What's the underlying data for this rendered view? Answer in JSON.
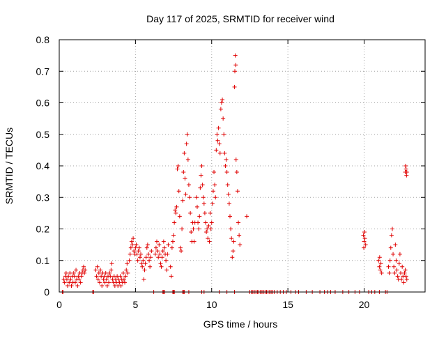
{
  "chart_data": {
    "type": "scatter",
    "title": "Day 117 of 2025, SRMTID for receiver wind",
    "xlabel": "GPS time / hours",
    "ylabel": "SRMTID / TECUs",
    "xlim": [
      0,
      24
    ],
    "ylim": [
      0,
      0.8
    ],
    "grid": true,
    "marker": "+",
    "marker_color": "#e00000",
    "x_ticks": [
      0,
      5,
      10,
      15,
      20
    ],
    "x_tick_labels": [
      "0",
      "5",
      "10",
      "15",
      "20"
    ],
    "y_ticks": [
      0,
      0.1,
      0.2,
      0.3,
      0.4,
      0.5,
      0.6,
      0.7,
      0.8
    ],
    "y_tick_labels": [
      "0",
      "0.1",
      "0.2",
      "0.3",
      "0.4",
      "0.5",
      "0.6",
      "0.7",
      "0.8"
    ],
    "series": [
      {
        "name": "SRMTID",
        "points": [
          [
            0.2,
            0.0
          ],
          [
            0.25,
            0.0
          ],
          [
            0.3,
            0.04
          ],
          [
            0.35,
            0.03
          ],
          [
            0.4,
            0.05
          ],
          [
            0.45,
            0.06
          ],
          [
            0.5,
            0.04
          ],
          [
            0.55,
            0.02
          ],
          [
            0.6,
            0.05
          ],
          [
            0.65,
            0.03
          ],
          [
            0.7,
            0.06
          ],
          [
            0.75,
            0.04
          ],
          [
            0.8,
            0.02
          ],
          [
            0.85,
            0.05
          ],
          [
            0.9,
            0.03
          ],
          [
            0.95,
            0.06
          ],
          [
            1.0,
            0.05
          ],
          [
            1.05,
            0.03
          ],
          [
            1.1,
            0.07
          ],
          [
            1.15,
            0.04
          ],
          [
            1.2,
            0.02
          ],
          [
            1.25,
            0.05
          ],
          [
            1.3,
            0.04
          ],
          [
            1.35,
            0.06
          ],
          [
            1.4,
            0.03
          ],
          [
            1.45,
            0.05
          ],
          [
            1.5,
            0.06
          ],
          [
            1.55,
            0.07
          ],
          [
            1.6,
            0.08
          ],
          [
            1.65,
            0.06
          ],
          [
            1.7,
            0.07
          ],
          [
            2.2,
            0.0
          ],
          [
            2.25,
            0.0
          ],
          [
            2.4,
            0.07
          ],
          [
            2.45,
            0.05
          ],
          [
            2.5,
            0.08
          ],
          [
            2.55,
            0.04
          ],
          [
            2.6,
            0.06
          ],
          [
            2.65,
            0.03
          ],
          [
            2.7,
            0.07
          ],
          [
            2.75,
            0.05
          ],
          [
            2.8,
            0.02
          ],
          [
            2.85,
            0.06
          ],
          [
            2.9,
            0.04
          ],
          [
            2.95,
            0.05
          ],
          [
            3.0,
            0.03
          ],
          [
            3.05,
            0.06
          ],
          [
            3.1,
            0.04
          ],
          [
            3.15,
            0.02
          ],
          [
            3.2,
            0.05
          ],
          [
            3.25,
            0.03
          ],
          [
            3.3,
            0.06
          ],
          [
            3.35,
            0.05
          ],
          [
            3.4,
            0.07
          ],
          [
            3.45,
            0.09
          ],
          [
            3.5,
            0.04
          ],
          [
            3.55,
            0.03
          ],
          [
            3.6,
            0.05
          ],
          [
            3.65,
            0.02
          ],
          [
            3.7,
            0.04
          ],
          [
            3.75,
            0.03
          ],
          [
            3.8,
            0.05
          ],
          [
            3.85,
            0.02
          ],
          [
            3.9,
            0.04
          ],
          [
            3.95,
            0.03
          ],
          [
            4.0,
            0.05
          ],
          [
            4.05,
            0.02
          ],
          [
            4.1,
            0.04
          ],
          [
            4.15,
            0.03
          ],
          [
            4.2,
            0.06
          ],
          [
            4.25,
            0.04
          ],
          [
            4.3,
            0.03
          ],
          [
            4.35,
            0.05
          ],
          [
            4.4,
            0.07
          ],
          [
            4.45,
            0.09
          ],
          [
            4.5,
            0.06
          ],
          [
            4.6,
            0.1
          ],
          [
            4.65,
            0.12
          ],
          [
            4.7,
            0.14
          ],
          [
            4.75,
            0.16
          ],
          [
            4.8,
            0.15
          ],
          [
            4.85,
            0.17
          ],
          [
            4.9,
            0.13
          ],
          [
            4.95,
            0.12
          ],
          [
            5.0,
            0.14
          ],
          [
            5.05,
            0.15
          ],
          [
            5.1,
            0.12
          ],
          [
            5.15,
            0.1
          ],
          [
            5.2,
            0.13
          ],
          [
            5.25,
            0.14
          ],
          [
            5.3,
            0.11
          ],
          [
            5.35,
            0.12
          ],
          [
            5.4,
            0.09
          ],
          [
            5.45,
            0.08
          ],
          [
            5.5,
            0.1
          ],
          [
            5.55,
            0.04
          ],
          [
            5.6,
            0.07
          ],
          [
            5.65,
            0.09
          ],
          [
            5.7,
            0.11
          ],
          [
            5.75,
            0.14
          ],
          [
            5.8,
            0.15
          ],
          [
            5.85,
            0.12
          ],
          [
            5.9,
            0.1
          ],
          [
            5.95,
            0.08
          ],
          [
            6.0,
            0.11
          ],
          [
            6.05,
            0.13
          ],
          [
            6.2,
            0.0
          ],
          [
            6.3,
            0.12
          ],
          [
            6.35,
            0.14
          ],
          [
            6.4,
            0.16
          ],
          [
            6.45,
            0.13
          ],
          [
            6.5,
            0.11
          ],
          [
            6.55,
            0.15
          ],
          [
            6.6,
            0.12
          ],
          [
            6.65,
            0.09
          ],
          [
            6.7,
            0.08
          ],
          [
            6.75,
            0.11
          ],
          [
            6.8,
            0.13
          ],
          [
            6.85,
            0.16
          ],
          [
            6.9,
            0.14
          ],
          [
            6.95,
            0.12
          ],
          [
            7.0,
            0.1
          ],
          [
            7.05,
            0.07
          ],
          [
            7.1,
            0.12
          ],
          [
            7.15,
            0.15
          ],
          [
            6.8,
            0.0
          ],
          [
            6.85,
            0.0
          ],
          [
            6.9,
            0.0
          ],
          [
            7.3,
            0.08
          ],
          [
            7.35,
            0.05
          ],
          [
            7.4,
            0.14
          ],
          [
            7.45,
            0.16
          ],
          [
            7.5,
            0.18
          ],
          [
            7.55,
            0.22
          ],
          [
            7.6,
            0.26
          ],
          [
            7.65,
            0.25
          ],
          [
            7.7,
            0.27
          ],
          [
            7.75,
            0.39
          ],
          [
            7.8,
            0.4
          ],
          [
            7.85,
            0.32
          ],
          [
            7.9,
            0.24
          ],
          [
            7.95,
            0.14
          ],
          [
            8.0,
            0.13
          ],
          [
            8.05,
            0.2
          ],
          [
            7.45,
            0.0
          ],
          [
            7.5,
            0.0
          ],
          [
            7.55,
            0.0
          ],
          [
            8.1,
            0.29
          ],
          [
            8.15,
            0.38
          ],
          [
            8.2,
            0.44
          ],
          [
            8.25,
            0.36
          ],
          [
            8.3,
            0.31
          ],
          [
            8.35,
            0.47
          ],
          [
            8.4,
            0.5
          ],
          [
            8.45,
            0.42
          ],
          [
            8.5,
            0.34
          ],
          [
            8.55,
            0.3
          ],
          [
            8.6,
            0.25
          ],
          [
            8.65,
            0.19
          ],
          [
            8.7,
            0.16
          ],
          [
            8.75,
            0.22
          ],
          [
            8.8,
            0.2
          ],
          [
            8.85,
            0.16
          ],
          [
            8.9,
            0.22
          ],
          [
            8.1,
            0.0
          ],
          [
            8.15,
            0.0
          ],
          [
            8.2,
            0.0
          ],
          [
            8.5,
            0.0
          ],
          [
            9.0,
            0.3
          ],
          [
            9.05,
            0.27
          ],
          [
            9.1,
            0.22
          ],
          [
            9.15,
            0.2
          ],
          [
            9.2,
            0.24
          ],
          [
            9.25,
            0.33
          ],
          [
            9.3,
            0.37
          ],
          [
            9.35,
            0.4
          ],
          [
            9.4,
            0.34
          ],
          [
            9.45,
            0.3
          ],
          [
            9.5,
            0.28
          ],
          [
            9.55,
            0.25
          ],
          [
            9.6,
            0.22
          ],
          [
            9.65,
            0.19
          ],
          [
            9.7,
            0.2
          ],
          [
            9.75,
            0.17
          ],
          [
            9.8,
            0.21
          ],
          [
            9.85,
            0.16
          ],
          [
            9.9,
            0.25
          ],
          [
            9.95,
            0.2
          ],
          [
            9.35,
            0.0
          ],
          [
            9.5,
            0.0
          ],
          [
            10.0,
            0.22
          ],
          [
            10.05,
            0.28
          ],
          [
            10.1,
            0.32
          ],
          [
            10.15,
            0.38
          ],
          [
            10.2,
            0.34
          ],
          [
            10.25,
            0.3
          ],
          [
            10.3,
            0.45
          ],
          [
            10.35,
            0.5
          ],
          [
            10.4,
            0.48
          ],
          [
            10.45,
            0.52
          ],
          [
            10.5,
            0.47
          ],
          [
            10.55,
            0.44
          ],
          [
            10.6,
            0.58
          ],
          [
            10.65,
            0.6
          ],
          [
            10.7,
            0.61
          ],
          [
            10.75,
            0.55
          ],
          [
            10.8,
            0.5
          ],
          [
            10.85,
            0.44
          ],
          [
            10.9,
            0.4
          ],
          [
            10.95,
            0.42
          ],
          [
            11.0,
            0.38
          ],
          [
            11.05,
            0.34
          ],
          [
            11.1,
            0.31
          ],
          [
            11.15,
            0.28
          ],
          [
            11.2,
            0.24
          ],
          [
            11.25,
            0.2
          ],
          [
            11.3,
            0.17
          ],
          [
            11.35,
            0.11
          ],
          [
            11.4,
            0.13
          ],
          [
            11.45,
            0.16
          ],
          [
            11.5,
            0.65
          ],
          [
            11.52,
            0.7
          ],
          [
            11.55,
            0.75
          ],
          [
            11.58,
            0.72
          ],
          [
            11.6,
            0.42
          ],
          [
            11.65,
            0.38
          ],
          [
            11.7,
            0.32
          ],
          [
            11.75,
            0.22
          ],
          [
            11.8,
            0.18
          ],
          [
            11.85,
            0.15
          ],
          [
            10.5,
            0.0
          ],
          [
            11.0,
            0.0
          ],
          [
            11.5,
            0.0
          ],
          [
            12.3,
            0.24
          ],
          [
            12.5,
            0.0
          ],
          [
            12.6,
            0.0
          ],
          [
            12.7,
            0.0
          ],
          [
            12.8,
            0.0
          ],
          [
            12.9,
            0.0
          ],
          [
            13.0,
            0.0
          ],
          [
            13.1,
            0.0
          ],
          [
            13.2,
            0.0
          ],
          [
            13.3,
            0.0
          ],
          [
            13.4,
            0.0
          ],
          [
            13.5,
            0.0
          ],
          [
            13.6,
            0.0
          ],
          [
            13.7,
            0.0
          ],
          [
            13.8,
            0.0
          ],
          [
            13.9,
            0.0
          ],
          [
            14.0,
            0.0
          ],
          [
            14.1,
            0.0
          ],
          [
            14.3,
            0.0
          ],
          [
            14.5,
            0.0
          ],
          [
            14.7,
            0.0
          ],
          [
            14.9,
            0.0
          ],
          [
            15.2,
            0.0
          ],
          [
            15.5,
            0.0
          ],
          [
            15.7,
            0.0
          ],
          [
            16.2,
            0.0
          ],
          [
            16.6,
            0.0
          ],
          [
            17.1,
            0.0
          ],
          [
            17.4,
            0.0
          ],
          [
            17.6,
            0.0
          ],
          [
            17.8,
            0.0
          ],
          [
            18.1,
            0.0
          ],
          [
            18.6,
            0.0
          ],
          [
            19.0,
            0.0
          ],
          [
            19.4,
            0.0
          ],
          [
            19.7,
            0.0
          ],
          [
            19.95,
            0.18
          ],
          [
            20.0,
            0.16
          ],
          [
            20.05,
            0.17
          ],
          [
            20.1,
            0.15
          ],
          [
            20.02,
            0.19
          ],
          [
            19.98,
            0.14
          ],
          [
            20.3,
            0.0
          ],
          [
            20.5,
            0.0
          ],
          [
            20.7,
            0.0
          ],
          [
            21.0,
            0.0
          ],
          [
            21.4,
            0.0
          ],
          [
            21.5,
            0.0
          ],
          [
            20.95,
            0.1
          ],
          [
            21.0,
            0.08
          ],
          [
            21.05,
            0.07
          ],
          [
            21.1,
            0.09
          ],
          [
            21.15,
            0.06
          ],
          [
            21.02,
            0.11
          ],
          [
            21.6,
            0.08
          ],
          [
            21.65,
            0.06
          ],
          [
            21.7,
            0.1
          ],
          [
            21.75,
            0.14
          ],
          [
            21.8,
            0.18
          ],
          [
            21.85,
            0.2
          ],
          [
            21.9,
            0.12
          ],
          [
            21.95,
            0.08
          ],
          [
            22.0,
            0.06
          ],
          [
            22.05,
            0.15
          ],
          [
            22.1,
            0.1
          ],
          [
            22.15,
            0.07
          ],
          [
            22.2,
            0.05
          ],
          [
            22.25,
            0.04
          ],
          [
            22.3,
            0.09
          ],
          [
            22.35,
            0.12
          ],
          [
            22.4,
            0.06
          ],
          [
            22.45,
            0.04
          ],
          [
            22.5,
            0.08
          ],
          [
            22.55,
            0.05
          ],
          [
            22.6,
            0.03
          ],
          [
            22.65,
            0.06
          ],
          [
            22.7,
            0.07
          ],
          [
            22.75,
            0.05
          ],
          [
            22.8,
            0.04
          ],
          [
            22.7,
            0.38
          ],
          [
            22.72,
            0.4
          ],
          [
            22.75,
            0.39
          ],
          [
            22.78,
            0.37
          ],
          [
            22.8,
            0.38
          ]
        ]
      }
    ]
  }
}
